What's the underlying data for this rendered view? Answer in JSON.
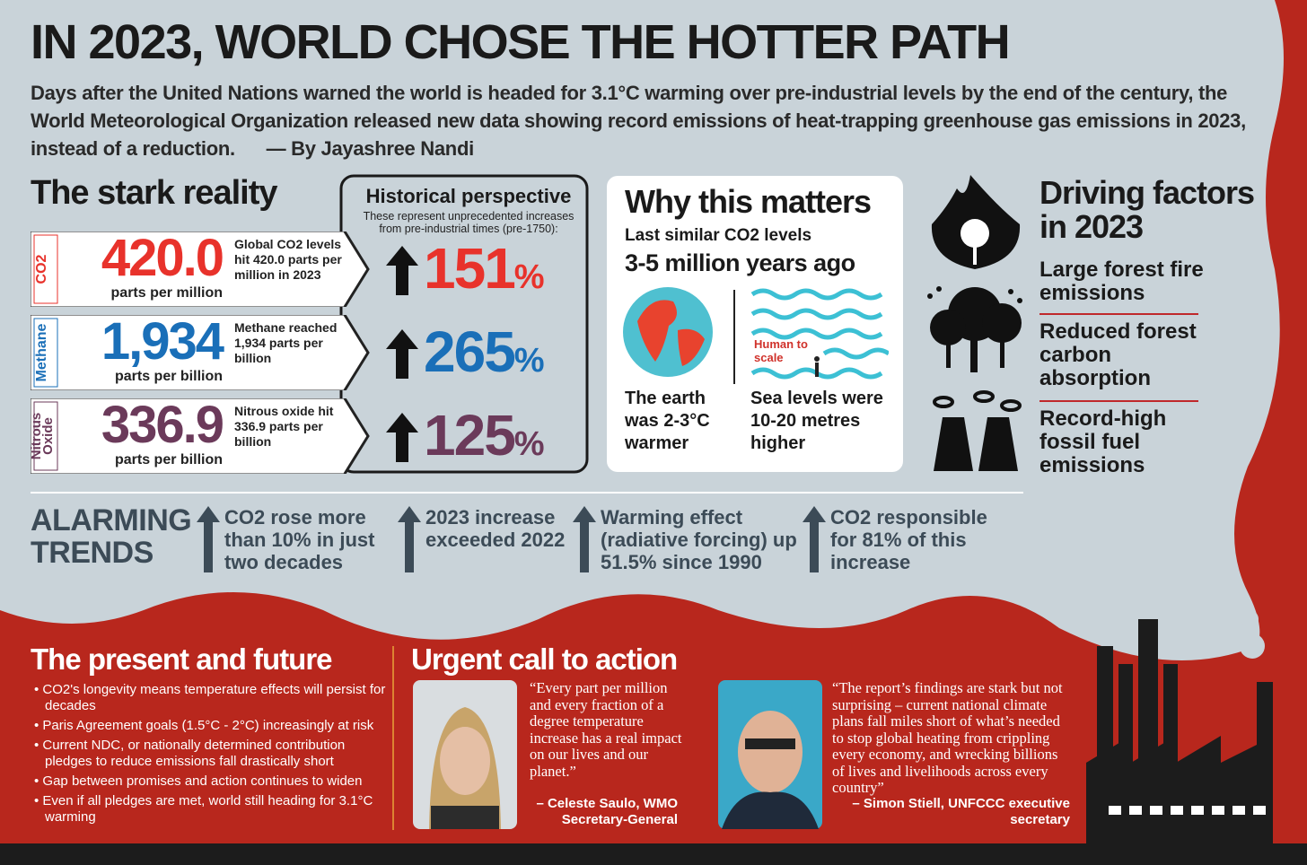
{
  "header": {
    "title": "IN 2023, WORLD CHOSE THE HOTTER PATH",
    "intro": "Days after the United Nations warned the world is headed for 3.1°C warming over pre-industrial levels by the end of the century, the World Meteorological Organization released new data showing record emissions of heat-trapping greenhouse gas emissions in 2023, instead of a reduction.",
    "byline": "— By Jayashree Nandi"
  },
  "stark_reality": {
    "title": "The stark reality",
    "gases": [
      {
        "label": "CO2",
        "value": "420.0",
        "unit": "parts per million",
        "note": "Global CO2 levels hit 420.0 parts per million in 2023",
        "increase": "151",
        "increase_unit": "%"
      },
      {
        "label": "Methane",
        "value": "1,934",
        "unit": "parts per billion",
        "note": "Methane reached 1,934 parts per billion",
        "increase": "265",
        "increase_unit": "%"
      },
      {
        "label": "Nitrous Oxide",
        "value": "336.9",
        "unit": "parts per billion",
        "note": "Nitrous oxide hit 336.9 parts per billion",
        "increase": "125",
        "increase_unit": "%"
      }
    ]
  },
  "historical": {
    "title": "Historical perspective",
    "subtitle": "These represent unprecedented increases from pre-industrial times (pre-1750):"
  },
  "why": {
    "title": "Why this matters",
    "subtitle": "Last similar CO2 levels",
    "period": "3-5 million years ago",
    "earth": "The earth was 2-3°C warmer",
    "sea": "Sea levels were 10-20 metres higher",
    "human": "Human to scale"
  },
  "driving": {
    "title": "Driving factors in 2023",
    "factors": [
      "Large forest fire emissions",
      "Reduced forest carbon absorption",
      "Record-high fossil fuel emissions"
    ]
  },
  "trends": {
    "title": "ALARMING TRENDS",
    "items": [
      "CO2 rose more than 10% in just two decades",
      "2023 increase exceeded 2022",
      "Warming effect (radiative forcing) up 51.5% since 1990",
      "CO2 responsible for 81% of this increase"
    ]
  },
  "present": {
    "title": "The present and future",
    "bullets": [
      "CO2's longevity means temperature effects will persist for decades",
      "Paris Agreement goals (1.5°C - 2°C) increasingly at risk",
      "Current NDC, or nationally determined contribution pledges to reduce emissions fall drastically short",
      "Gap between promises and action continues to widen",
      "Even if all pledges are met, world still heading for 3.1°C warming"
    ]
  },
  "action": {
    "title": "Urgent call to action",
    "quotes": [
      {
        "text": "“Every part per million and every fraction of a degree temperature increase has a real impact on our lives and our planet.”",
        "author": "– Celeste Saulo, WMO Secretary-General"
      },
      {
        "text": "“The report’s findings are stark but not surprising – current national climate plans fall miles short of what’s needed to stop global heating from crippling every economy, and wrecking billions of lives and livelihoods across every country”",
        "author": "– Simon Stiell, UNFCCC executive secretary"
      }
    ]
  }
}
